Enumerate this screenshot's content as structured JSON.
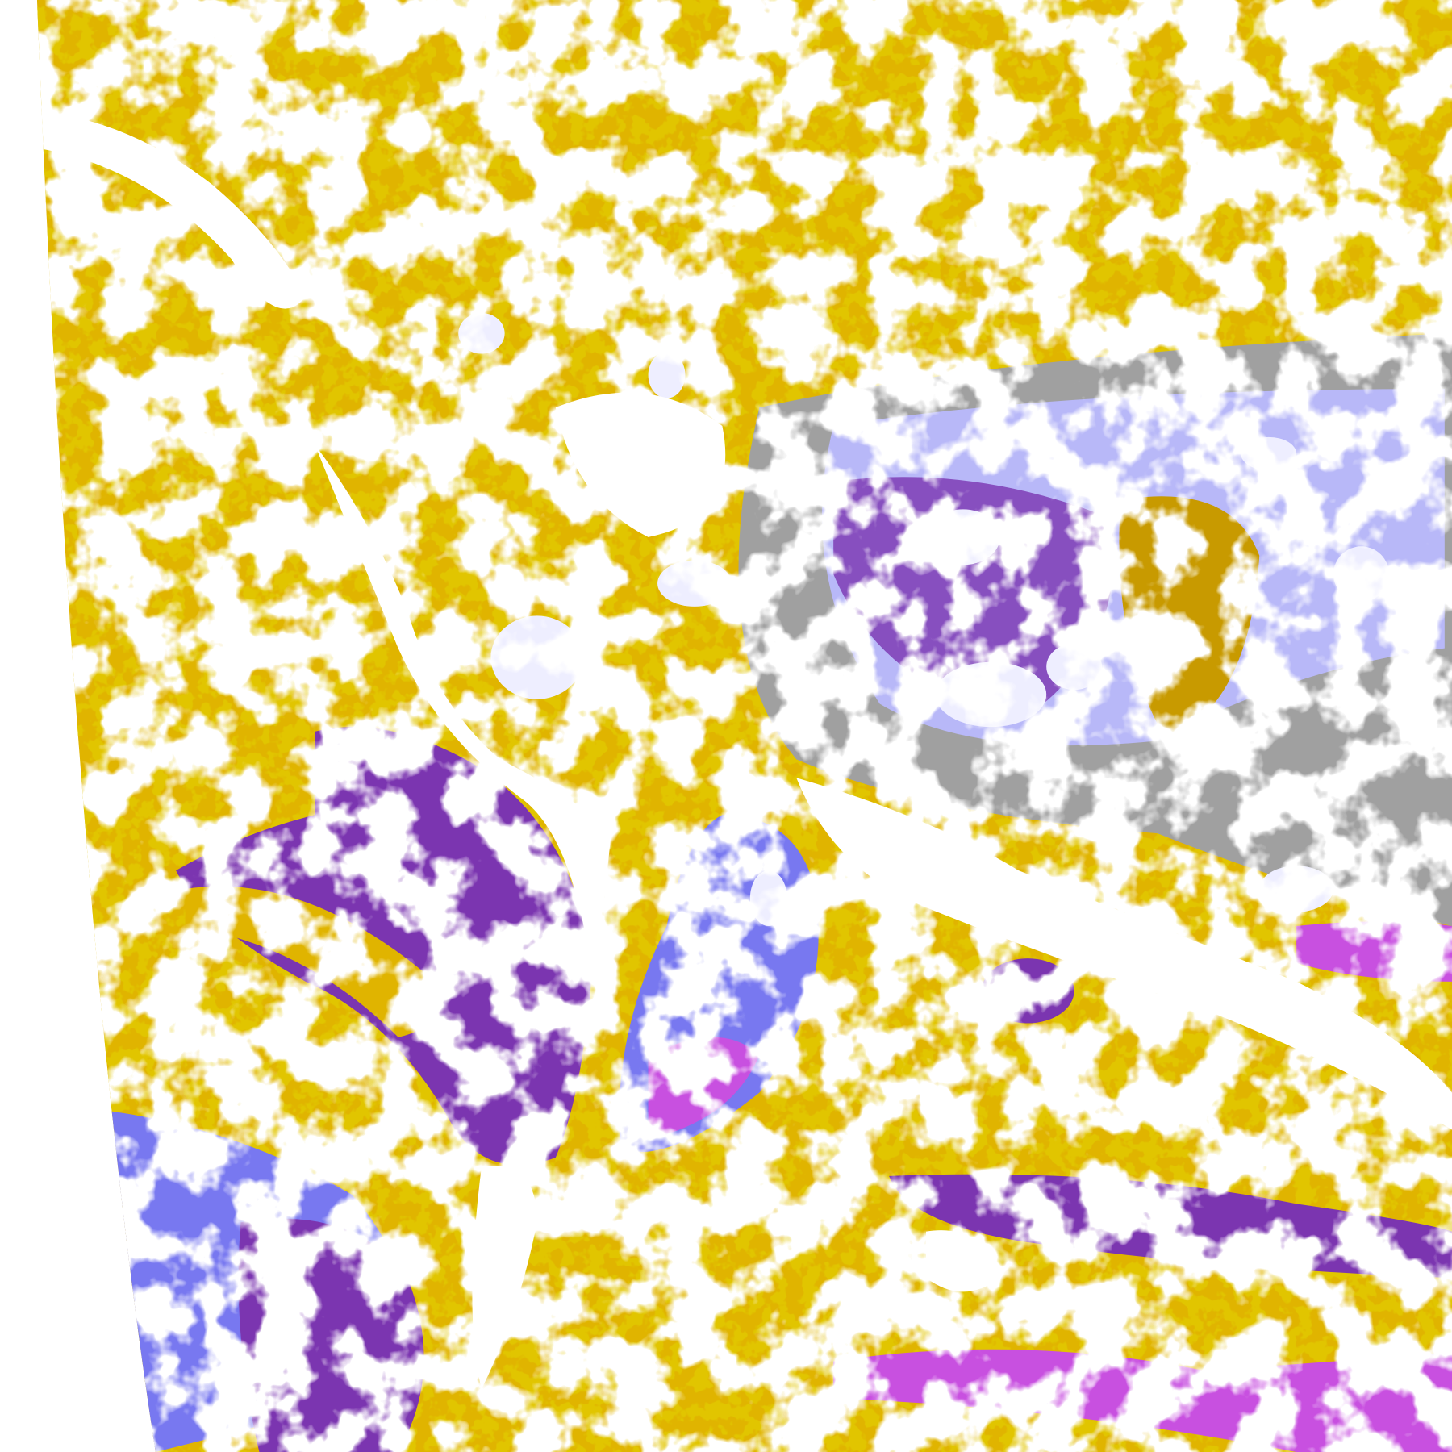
{
  "image": {
    "kind": "satellite cloud-type classification map",
    "background_color": "#ffffff",
    "colors": {
      "clear": "#ffffff",
      "gold": "#e0b400",
      "dark_gold": "#c09000",
      "purple": "#7b35b0",
      "blue_violet": "#7878f0",
      "magenta": "#c850e0",
      "gray": "#a0a0a0",
      "lavender": "#e8e8ff",
      "light_violet": "#b8b8f8"
    }
  }
}
